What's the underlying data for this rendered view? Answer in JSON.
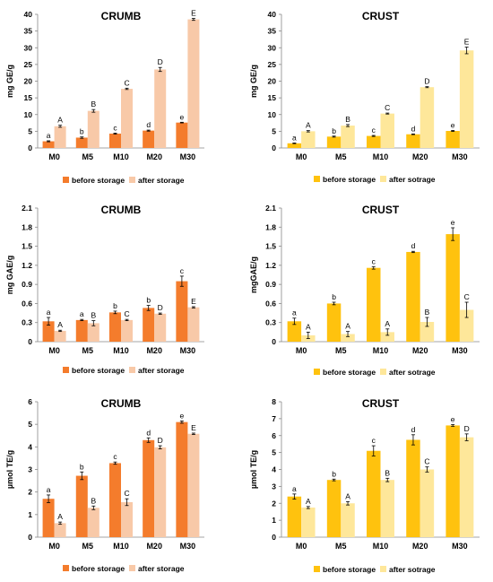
{
  "chart_data": [
    {
      "type": "bar",
      "title": "CRUMB",
      "ylabel": "mg GE/g",
      "ylim": [
        0,
        40
      ],
      "yticks": [
        0,
        5,
        10,
        15,
        20,
        25,
        30,
        35,
        40
      ],
      "categories": [
        "M0",
        "M5",
        "M10",
        "M20",
        "M30"
      ],
      "series": [
        {
          "name": "before storage",
          "color": "#f47c2c",
          "values": [
            2.0,
            3.1,
            4.3,
            5.2,
            7.6
          ],
          "errors": [
            0.15,
            0.2,
            0.15,
            0.15,
            0.1
          ],
          "letters": [
            "a",
            "b",
            "c",
            "d",
            "e"
          ]
        },
        {
          "name": "after storage",
          "color": "#f8c9a8",
          "values": [
            6.5,
            11.1,
            17.7,
            23.5,
            38.5
          ],
          "errors": [
            0.3,
            0.4,
            0.2,
            0.6,
            0.3
          ],
          "letters": [
            "A",
            "B",
            "C",
            "D",
            "E"
          ]
        }
      ]
    },
    {
      "type": "bar",
      "title": "CRUST",
      "ylabel": "mg GE/g",
      "ylim": [
        0,
        40
      ],
      "yticks": [
        0,
        5,
        10,
        15,
        20,
        25,
        30,
        35,
        40
      ],
      "categories": [
        "M0",
        "M5",
        "M10",
        "M20",
        "M30"
      ],
      "series": [
        {
          "name": "before storage",
          "color": "#ffc20e",
          "values": [
            1.4,
            3.4,
            3.6,
            4.1,
            5.1
          ],
          "errors": [
            0.1,
            0.15,
            0.15,
            0.1,
            0.15
          ],
          "letters": [
            "a",
            "b",
            "c",
            "d",
            "e"
          ]
        },
        {
          "name": "after sotrage",
          "color": "#fee79a",
          "values": [
            5.0,
            6.7,
            10.3,
            18.2,
            29.2
          ],
          "errors": [
            0.2,
            0.3,
            0.15,
            0.15,
            1.0
          ],
          "letters": [
            "A",
            "B",
            "C",
            "D",
            "E"
          ]
        }
      ]
    },
    {
      "type": "bar",
      "title": "CRUMB",
      "ylabel": "mg GAE/g",
      "ylim": [
        0,
        2.1
      ],
      "yticks": [
        "0",
        "0.3",
        "0.6",
        "0.9",
        "1.2",
        "1.5",
        "1.8",
        "2.1"
      ],
      "categories": [
        "M0",
        "M5",
        "M10",
        "M20",
        "M30"
      ],
      "series": [
        {
          "name": "before storage",
          "color": "#f47c2c",
          "values": [
            0.32,
            0.34,
            0.46,
            0.53,
            0.95
          ],
          "errors": [
            0.06,
            0.01,
            0.02,
            0.04,
            0.08
          ],
          "letters": [
            "a",
            "a",
            "b",
            "b",
            "c"
          ]
        },
        {
          "name": "after storage",
          "color": "#f8c9a8",
          "values": [
            0.17,
            0.29,
            0.34,
            0.44,
            0.54
          ],
          "errors": [
            0.01,
            0.04,
            0.01,
            0.01,
            0.01
          ],
          "letters": [
            "A",
            "B",
            "C",
            "D",
            "E"
          ]
        }
      ]
    },
    {
      "type": "bar",
      "title": "CRUST",
      "ylabel": "mgGAE/g",
      "ylim": [
        0,
        2.1
      ],
      "yticks": [
        "0",
        "0.3",
        "0.6",
        "0.9",
        "1.2",
        "1.5",
        "1.8",
        "2.1"
      ],
      "categories": [
        "M0",
        "M5",
        "M10",
        "M20",
        "M30"
      ],
      "series": [
        {
          "name": "before storage",
          "color": "#ffc20e",
          "values": [
            0.32,
            0.6,
            1.16,
            1.41,
            1.69
          ],
          "errors": [
            0.05,
            0.02,
            0.02,
            0.01,
            0.1
          ],
          "letters": [
            "a",
            "b",
            "c",
            "d",
            "e"
          ]
        },
        {
          "name": "after sotrage",
          "color": "#fee79a",
          "values": [
            0.1,
            0.12,
            0.15,
            0.31,
            0.5
          ],
          "errors": [
            0.05,
            0.04,
            0.05,
            0.07,
            0.12
          ],
          "letters": [
            "A",
            "A",
            "A",
            "B",
            "C"
          ]
        }
      ]
    },
    {
      "type": "bar",
      "title": "CRUMB",
      "ylabel": "µmol TE/g",
      "ylim": [
        0,
        6
      ],
      "yticks": [
        0,
        1,
        2,
        3,
        4,
        5,
        6
      ],
      "categories": [
        "M0",
        "M5",
        "M10",
        "M20",
        "M30"
      ],
      "series": [
        {
          "name": "before storage",
          "color": "#f47c2c",
          "values": [
            1.7,
            2.72,
            3.28,
            4.3,
            5.1
          ],
          "errors": [
            0.17,
            0.17,
            0.05,
            0.1,
            0.05
          ],
          "letters": [
            "a",
            "b",
            "c",
            "d",
            "e"
          ]
        },
        {
          "name": "after storage",
          "color": "#f8c9a8",
          "values": [
            0.62,
            1.3,
            1.55,
            3.98,
            4.58
          ],
          "errors": [
            0.05,
            0.08,
            0.15,
            0.07,
            0.03
          ],
          "letters": [
            "A",
            "B",
            "C",
            "D",
            "E"
          ]
        }
      ]
    },
    {
      "type": "bar",
      "title": "CRUST",
      "ylabel": "µmol TE/g",
      "ylim": [
        0,
        8
      ],
      "yticks": [
        0,
        1,
        2,
        3,
        4,
        5,
        6,
        7,
        8
      ],
      "categories": [
        "M0",
        "M5",
        "M10",
        "M20",
        "M30"
      ],
      "series": [
        {
          "name": "before storage",
          "color": "#ffc20e",
          "values": [
            2.4,
            3.38,
            5.1,
            5.75,
            6.6
          ],
          "errors": [
            0.15,
            0.05,
            0.3,
            0.3,
            0.05
          ],
          "letters": [
            "a",
            "b",
            "c",
            "d",
            "e"
          ]
        },
        {
          "name": "after sotrage",
          "color": "#fee79a",
          "values": [
            1.75,
            2.0,
            3.38,
            4.0,
            5.9
          ],
          "errors": [
            0.06,
            0.1,
            0.1,
            0.15,
            0.2
          ],
          "letters": [
            "A",
            "A",
            "B",
            "C",
            "D"
          ]
        }
      ]
    }
  ]
}
